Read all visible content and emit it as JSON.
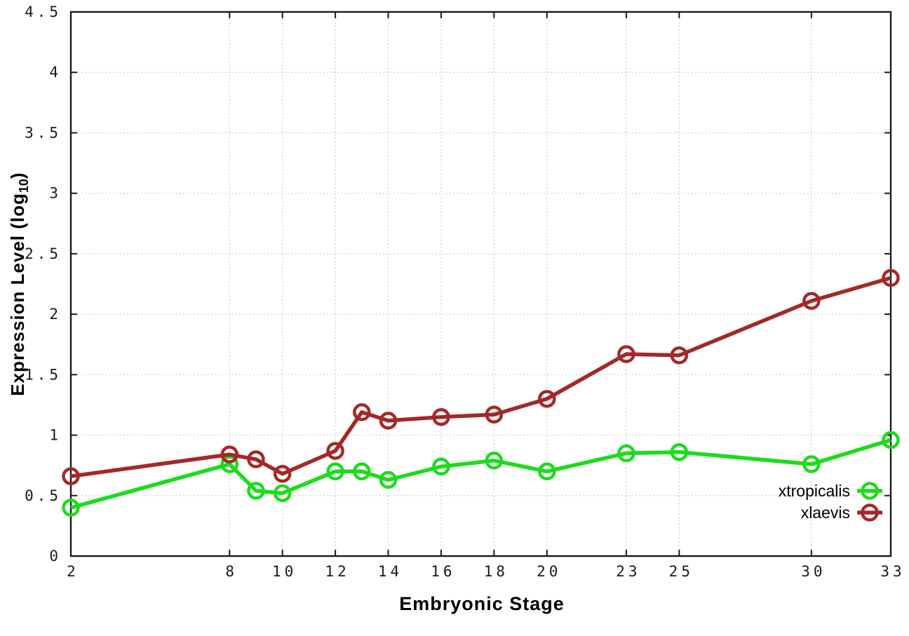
{
  "chart_data": {
    "type": "line",
    "title": "",
    "xlabel": "Embryonic Stage",
    "ylabel": "Expression Level (log10)",
    "ylabel_prefix": "Expression Level (log",
    "ylabel_sub": "10",
    "ylabel_suffix": ")",
    "x": [
      2,
      8,
      9,
      10,
      12,
      13,
      14,
      16,
      18,
      20,
      23,
      25,
      30,
      33
    ],
    "series": [
      {
        "name": "xtropicalis",
        "color": "#1ddb1d",
        "values": [
          0.4,
          0.76,
          0.54,
          0.52,
          0.7,
          0.7,
          0.63,
          0.74,
          0.79,
          0.7,
          0.85,
          0.86,
          0.76,
          0.96
        ]
      },
      {
        "name": "xlaevis",
        "color": "#a32929",
        "values": [
          0.66,
          0.84,
          0.8,
          0.68,
          0.87,
          1.19,
          1.12,
          1.15,
          1.17,
          1.3,
          1.67,
          1.66,
          2.11,
          2.3
        ]
      }
    ],
    "xticks": [
      2,
      8,
      10,
      12,
      14,
      16,
      18,
      20,
      23,
      25,
      30,
      33
    ],
    "xtick_labels": [
      "2",
      "8",
      "10",
      "12",
      "14",
      "16",
      "18",
      "20",
      "23",
      "25",
      "30",
      "33"
    ],
    "yticks": [
      0,
      0.5,
      1,
      1.5,
      2,
      2.5,
      3,
      3.5,
      4,
      4.5
    ],
    "ytick_labels": [
      "0",
      "0.5",
      "1",
      "1.5",
      "2",
      "2.5",
      "3",
      "3.5",
      "4",
      "4.5"
    ],
    "xlim": [
      2,
      33
    ],
    "ylim": [
      0,
      4.5
    ],
    "grid": true,
    "legend_position": "inside-right-bottom",
    "legend_order": [
      "xtropicalis",
      "xlaevis"
    ],
    "colors": {
      "axis": "#1a1a1a",
      "grid": "#bfbfbf",
      "tick_label": "#1a1a1a",
      "background": "#ffffff",
      "xtropicalis": "#1ddb1d",
      "xlaevis": "#a32929"
    }
  }
}
